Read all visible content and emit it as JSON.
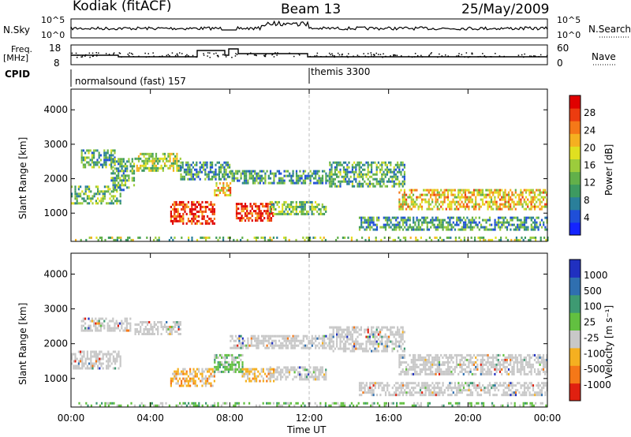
{
  "header": {
    "station": "Kodiak (fitACF)",
    "beam": "Beam 13",
    "date": "25/May/2009"
  },
  "left_labels": {
    "nsky": "N.Sky",
    "nsky_hi": "10^5",
    "nsky_lo": "10^0",
    "freq": "Freq.",
    "freq_unit": "[MHz]",
    "freq_hi": "18",
    "freq_lo": "8",
    "cpid": "CPID"
  },
  "right_labels": {
    "nsearch": "N.Search",
    "nsearch_hi": "10^5",
    "nsearch_lo": "10^0",
    "nave": "Nave",
    "nave_hi": "60",
    "nave_lo": "0"
  },
  "cpid_segments": [
    {
      "label": "normalsound (fast) 157",
      "start": "00:00"
    },
    {
      "label": "themis 3300",
      "start": "12:00"
    }
  ],
  "chart_data": [
    {
      "type": "heatmap",
      "title": "Power",
      "ylabel": "Slant Range [km]",
      "xlabel": "",
      "ylim": [
        180,
        4600
      ],
      "yticks": [
        "1000",
        "2000",
        "3000",
        "4000"
      ],
      "xticks": [
        "00:00",
        "04:00",
        "08:00",
        "12:00",
        "16:00",
        "20:00",
        "00:00"
      ],
      "colorbar": {
        "label": "Power [dB]",
        "ticks": [
          "4",
          "8",
          "12",
          "16",
          "20",
          "24",
          "28"
        ],
        "colors": [
          "#1424ff",
          "#1f4fd8",
          "#2a7f9a",
          "#3d9a60",
          "#62b04a",
          "#9ccc3c",
          "#e0e020",
          "#f5b020",
          "#f57818",
          "#ec3c10",
          "#e00000"
        ]
      },
      "regions": [
        {
          "t0": 0.2,
          "t1": 24.0,
          "r0": 200,
          "r1": 320,
          "level": 0.45
        },
        {
          "t0": 0.0,
          "t1": 2.5,
          "r0": 1300,
          "r1": 1800,
          "level": 0.4
        },
        {
          "t0": 0.5,
          "t1": 2.2,
          "r0": 2350,
          "r1": 2850,
          "level": 0.35
        },
        {
          "t0": 2.0,
          "t1": 3.2,
          "r0": 1700,
          "r1": 2600,
          "level": 0.35
        },
        {
          "t0": 3.2,
          "t1": 5.5,
          "r0": 2250,
          "r1": 2750,
          "level": 0.5
        },
        {
          "t0": 5.5,
          "t1": 8.0,
          "r0": 2000,
          "r1": 2500,
          "level": 0.3
        },
        {
          "t0": 5.0,
          "t1": 7.2,
          "r0": 700,
          "r1": 1350,
          "level": 0.95
        },
        {
          "t0": 7.2,
          "t1": 8.0,
          "r0": 1500,
          "r1": 1900,
          "level": 0.7
        },
        {
          "t0": 8.3,
          "t1": 10.2,
          "r0": 800,
          "r1": 1300,
          "level": 0.92
        },
        {
          "t0": 10.0,
          "t1": 12.8,
          "r0": 1000,
          "r1": 1350,
          "level": 0.4
        },
        {
          "t0": 8.0,
          "t1": 13.0,
          "r0": 1900,
          "r1": 2250,
          "level": 0.3
        },
        {
          "t0": 13.0,
          "t1": 16.8,
          "r0": 1800,
          "r1": 2500,
          "level": 0.35
        },
        {
          "t0": 16.5,
          "t1": 24.0,
          "r0": 1100,
          "r1": 1700,
          "level": 0.65
        },
        {
          "t0": 14.5,
          "t1": 24.0,
          "r0": 500,
          "r1": 900,
          "level": 0.3
        }
      ]
    },
    {
      "type": "heatmap",
      "title": "Velocity",
      "ylabel": "Slant Range [km]",
      "xlabel": "Time UT",
      "ylim": [
        180,
        4600
      ],
      "yticks": [
        "1000",
        "2000",
        "3000",
        "4000"
      ],
      "xticks": [
        "00:00",
        "04:00",
        "08:00",
        "12:00",
        "16:00",
        "20:00",
        "00:00"
      ],
      "colorbar": {
        "label": "Velocity [m s⁻¹]",
        "ticks": [
          "1000",
          "500",
          "100",
          "25",
          "-25",
          "-100",
          "-500",
          "-1000"
        ],
        "colors": [
          "#2030c0",
          "#2f6fb0",
          "#3e9a72",
          "#62c040",
          "#c8c8c8",
          "#f5b020",
          "#f57818",
          "#e02010"
        ]
      },
      "regions": [
        {
          "t0": 0.2,
          "t1": 24.0,
          "r0": 200,
          "r1": 320,
          "vel": "pos"
        },
        {
          "t0": 0.5,
          "t1": 3.0,
          "r0": 2350,
          "r1": 2750,
          "vel": "zero"
        },
        {
          "t0": 3.2,
          "t1": 5.5,
          "r0": 2250,
          "r1": 2650,
          "vel": "zero"
        },
        {
          "t0": 0.0,
          "t1": 2.5,
          "r0": 1300,
          "r1": 1800,
          "vel": "zero"
        },
        {
          "t0": 5.0,
          "t1": 7.2,
          "r0": 800,
          "r1": 1300,
          "vel": "neg"
        },
        {
          "t0": 7.2,
          "t1": 8.6,
          "r0": 1200,
          "r1": 1700,
          "vel": "pos"
        },
        {
          "t0": 8.6,
          "t1": 10.2,
          "r0": 900,
          "r1": 1300,
          "vel": "neg"
        },
        {
          "t0": 10.0,
          "t1": 12.8,
          "r0": 1000,
          "r1": 1350,
          "vel": "zero"
        },
        {
          "t0": 8.0,
          "t1": 13.0,
          "r0": 1900,
          "r1": 2250,
          "vel": "zero"
        },
        {
          "t0": 13.0,
          "t1": 16.8,
          "r0": 1800,
          "r1": 2500,
          "vel": "zero"
        },
        {
          "t0": 16.5,
          "t1": 24.0,
          "r0": 1100,
          "r1": 1700,
          "vel": "zero"
        },
        {
          "t0": 14.5,
          "t1": 24.0,
          "r0": 500,
          "r1": 900,
          "vel": "zero"
        }
      ]
    }
  ]
}
